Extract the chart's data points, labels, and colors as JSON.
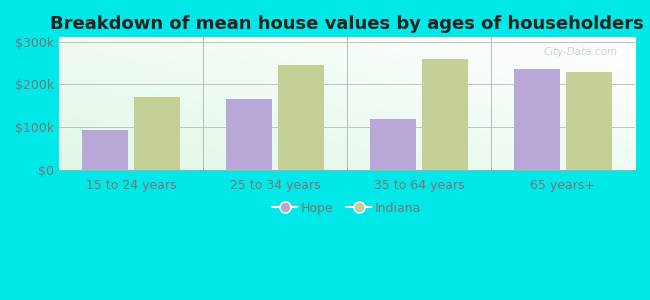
{
  "title": "Breakdown of mean house values by ages of householders",
  "categories": [
    "15 to 24 years",
    "25 to 34 years",
    "35 to 64 years",
    "65 years+"
  ],
  "hope_values": [
    95000,
    165000,
    120000,
    235000
  ],
  "indiana_values": [
    170000,
    245000,
    260000,
    230000
  ],
  "hope_color": "#b8a8d8",
  "indiana_color": "#c5cf98",
  "background_color": "#00e8e8",
  "ylim": [
    0,
    310000
  ],
  "yticks": [
    0,
    100000,
    200000,
    300000
  ],
  "ytick_labels": [
    "$0",
    "$100k",
    "$200k",
    "$300k"
  ],
  "legend_hope": "Hope",
  "legend_indiana": "Indiana",
  "bar_width": 0.32,
  "title_fontsize": 13,
  "tick_fontsize": 9,
  "legend_fontsize": 9,
  "watermark": "City-Data.com"
}
